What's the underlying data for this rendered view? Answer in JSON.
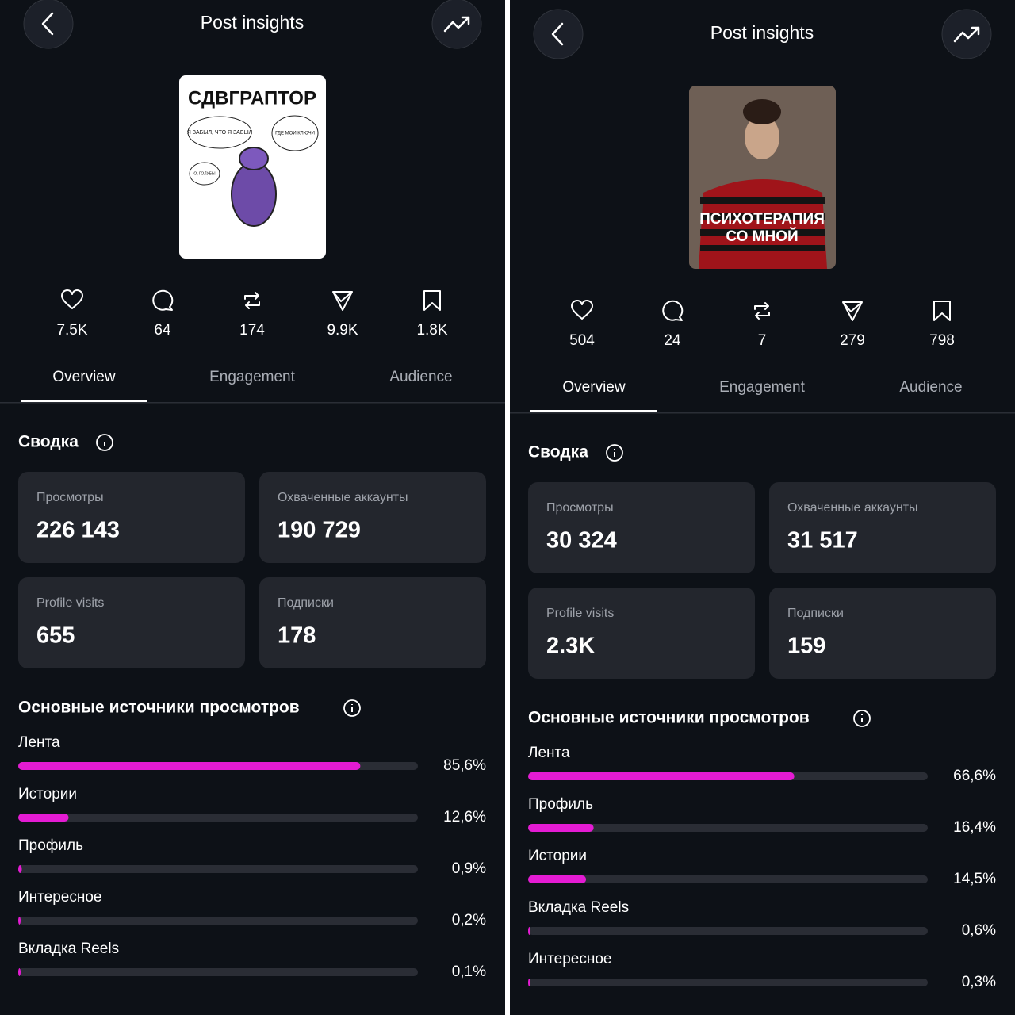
{
  "panels": [
    {
      "title": "Post insights",
      "image_texts": [
        "СДВГРАПТОР",
        "Я ЗАБЫЛ, ЧТО Я ЗАБЫЛ",
        "ГДЕ МОИ КЛЮЧИ",
        "О, ГОЛУБЬ!"
      ],
      "stats": [
        "7.5K",
        "64",
        "174",
        "9.9K",
        "1.8K"
      ],
      "tabs": [
        "Overview",
        "Engagement",
        "Audience"
      ],
      "summary_title": "Сводка",
      "cards": [
        {
          "label": "Просмотры",
          "value": "226 143"
        },
        {
          "label": "Охваченные аккаунты",
          "value": "190 729"
        },
        {
          "label": "Profile visits",
          "value": "655"
        },
        {
          "label": "Подписки",
          "value": "178"
        }
      ],
      "sources_title": "Основные источники просмотров",
      "sources": [
        {
          "name": "Лента",
          "share": {
            "value": 85.6,
            "label": "85,6%"
          }
        },
        {
          "name": "Истории",
          "share": {
            "value": 12.6,
            "label": "12,6%"
          }
        },
        {
          "name": "Профиль",
          "share": {
            "value": 0.9,
            "label": "0,9%"
          }
        },
        {
          "name": "Интересное",
          "share": {
            "value": 0.2,
            "label": "0,2%"
          }
        },
        {
          "name": "Вкладка Reels",
          "share": {
            "value": 0.1,
            "label": "0,1%"
          }
        }
      ]
    },
    {
      "title": "Post insights",
      "image_texts": [
        "ПСИХОТЕРАПИЯ",
        "СО МНОЙ"
      ],
      "stats": [
        "504",
        "24",
        "7",
        "279",
        "798"
      ],
      "tabs": [
        "Overview",
        "Engagement",
        "Audience"
      ],
      "summary_title": "Сводка",
      "cards": [
        {
          "label": "Просмотры",
          "value": "30 324"
        },
        {
          "label": "Охваченные аккаунты",
          "value": "31 517"
        },
        {
          "label": "Profile visits",
          "value": "2.3K"
        },
        {
          "label": "Подписки",
          "value": "159"
        }
      ],
      "sources_title": "Основные источники просмотров",
      "sources": [
        {
          "name": "Лента",
          "share": {
            "value": 66.6,
            "label": "66,6%"
          }
        },
        {
          "name": "Профиль",
          "share": {
            "value": 16.4,
            "label": "16,4%"
          }
        },
        {
          "name": "Истории",
          "share": {
            "value": 14.5,
            "label": "14,5%"
          }
        },
        {
          "name": "Вкладка Reels",
          "share": {
            "value": 0.6,
            "label": "0,6%"
          }
        },
        {
          "name": "Интересное",
          "share": {
            "value": 0.3,
            "label": "0,3%"
          }
        }
      ]
    }
  ]
}
